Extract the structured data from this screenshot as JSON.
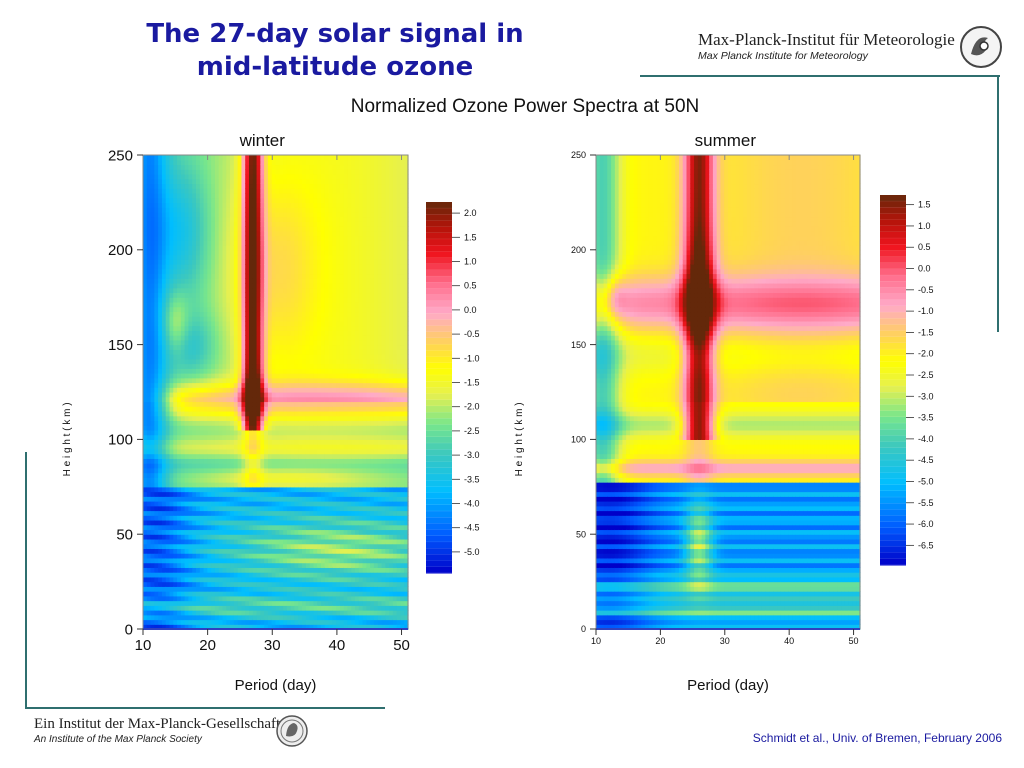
{
  "header": {
    "title_line1": "The 27-day solar signal in",
    "title_line2": "mid-latitude ozone",
    "institute_name": "Max-Planck-Institut für Meteorologie",
    "institute_subtitle": "Max Planck Institute for Meteorology"
  },
  "subtitle": "Normalized Ozone Power Spectra at 50N",
  "footer": {
    "society_name": "Ein Institut der Max-Planck-Gesellschaft",
    "society_subtitle": "An Institute of the Max Planck Society",
    "citation": "Schmidt et al., Univ. of Bremen, February 2006"
  },
  "colors": {
    "title": "#1a1aa0",
    "rule": "#2f6f6f",
    "citation": "#1a1aa0"
  },
  "chart_data": [
    {
      "type": "heatmap",
      "title": "winter",
      "xlabel": "Period (day)",
      "ylabel": "H e i g h t  ( k m )",
      "xlim": [
        10,
        51
      ],
      "ylim": [
        0,
        250
      ],
      "xticks": [
        10,
        20,
        30,
        40,
        50
      ],
      "yticks": [
        0,
        50,
        100,
        150,
        200,
        250
      ],
      "colorbar_levels": [
        2.0,
        1.5,
        1.0,
        0.5,
        0.0,
        -0.5,
        -1.0,
        -1.5,
        -2.0,
        -2.5,
        -3.0,
        -3.5,
        -4.0,
        -4.5,
        -5.0
      ],
      "features": {
        "peak_period": 27,
        "peak_height_range": [
          105,
          250
        ],
        "peak_max_height": 125,
        "strong_band_height": 120
      }
    },
    {
      "type": "heatmap",
      "title": "summer",
      "xlabel": "Period (day)",
      "ylabel": "H e i g h t  ( k m )",
      "xlim": [
        10,
        51
      ],
      "ylim": [
        0,
        250
      ],
      "xticks": [
        10,
        20,
        30,
        40,
        50
      ],
      "yticks": [
        0,
        50,
        100,
        150,
        200,
        250
      ],
      "colorbar_levels": [
        1.5,
        1.0,
        0.5,
        0.0,
        -0.5,
        -1.0,
        -1.5,
        -2.0,
        -2.5,
        -3.0,
        -3.5,
        -4.0,
        -4.5,
        -5.0,
        -5.5,
        -6.0,
        -6.5
      ],
      "features": {
        "peak_period": 26,
        "peak_height_range": [
          100,
          250
        ],
        "peak_max_height": 175,
        "strong_band_height": 175
      }
    }
  ]
}
